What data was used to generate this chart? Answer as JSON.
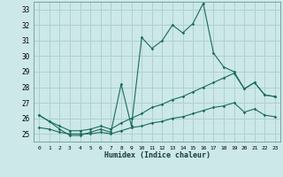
{
  "xlabel": "Humidex (Indice chaleur)",
  "bg_color": "#cce8e8",
  "grid_color": "#b0d0d0",
  "line_color": "#1a6b5a",
  "x_values": [
    0,
    1,
    2,
    3,
    4,
    5,
    6,
    7,
    8,
    9,
    10,
    11,
    12,
    13,
    14,
    15,
    16,
    17,
    18,
    19,
    20,
    21,
    22,
    23
  ],
  "y_main": [
    26.2,
    25.8,
    25.3,
    24.9,
    24.9,
    25.1,
    25.3,
    25.1,
    28.2,
    25.5,
    31.2,
    30.5,
    31.0,
    32.0,
    31.5,
    32.1,
    33.4,
    30.2,
    29.3,
    29.0,
    27.9,
    28.3,
    27.5,
    27.4
  ],
  "y_line2": [
    26.2,
    25.8,
    25.5,
    25.2,
    25.2,
    25.3,
    25.5,
    25.3,
    25.7,
    26.0,
    26.3,
    26.7,
    26.9,
    27.2,
    27.4,
    27.7,
    28.0,
    28.3,
    28.6,
    28.9,
    27.9,
    28.3,
    27.5,
    27.4
  ],
  "y_line3": [
    25.4,
    25.3,
    25.1,
    25.0,
    25.0,
    25.0,
    25.1,
    25.0,
    25.2,
    25.4,
    25.5,
    25.7,
    25.8,
    26.0,
    26.1,
    26.3,
    26.5,
    26.7,
    26.8,
    27.0,
    26.4,
    26.6,
    26.2,
    26.1
  ],
  "ylim": [
    24.5,
    33.5
  ],
  "yticks": [
    25,
    26,
    27,
    28,
    29,
    30,
    31,
    32,
    33
  ],
  "xlim": [
    -0.5,
    23.5
  ],
  "xtick_labels": [
    "0",
    "1",
    "2",
    "3",
    "4",
    "5",
    "6",
    "7",
    "8",
    "9",
    "10",
    "11",
    "12",
    "13",
    "14",
    "15",
    "16",
    "17",
    "18",
    "19",
    "20",
    "21",
    "22",
    "23"
  ]
}
